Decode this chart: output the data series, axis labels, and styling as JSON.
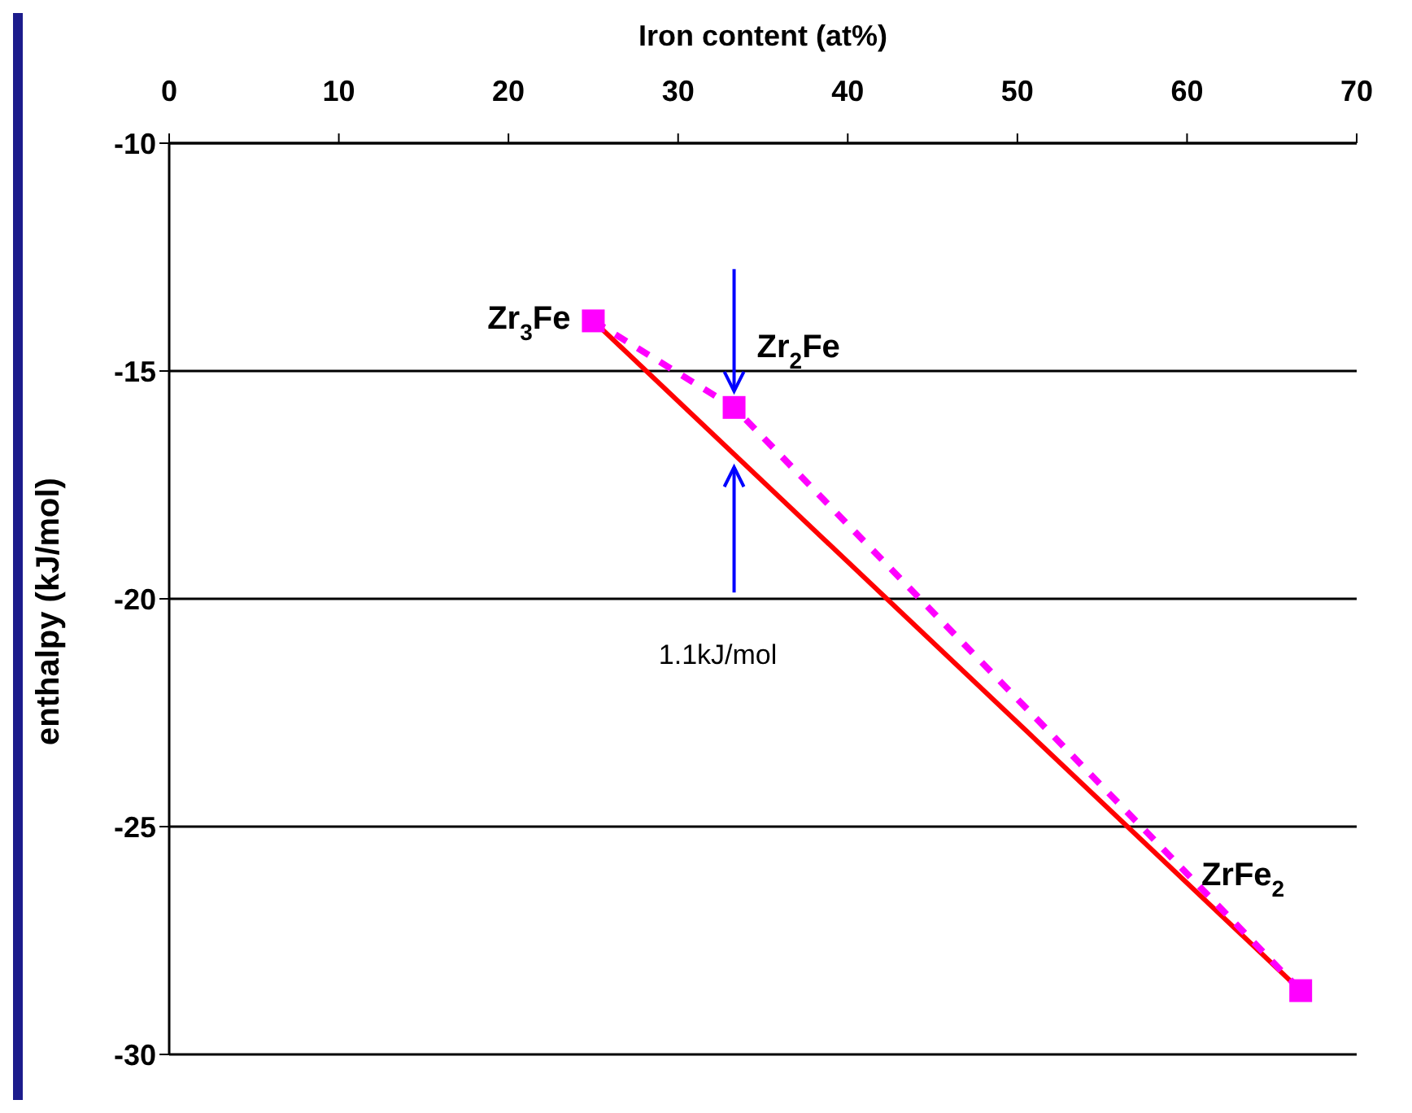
{
  "chart_data": {
    "type": "line",
    "xlabel": "Iron content (at%)",
    "ylabel": "enthalpy (kJ/mol)",
    "xlim": [
      0,
      70
    ],
    "xticks": [
      0,
      10,
      20,
      30,
      40,
      50,
      60,
      70
    ],
    "ylim": [
      -30,
      -10
    ],
    "yticks": [
      -30,
      -25,
      -20,
      -15,
      -10
    ],
    "grid": "y",
    "series": [
      {
        "color": "#ff0000",
        "x": [
          25,
          66.7
        ],
        "values": [
          -13.9,
          -28.6
        ],
        "line_style": "solid",
        "marker": "none"
      },
      {
        "color": "#ff00ff",
        "x": [
          25,
          33.3,
          66.7
        ],
        "values": [
          -13.9,
          -15.8,
          -28.6
        ],
        "line_style": "dashed",
        "marker": "square"
      }
    ],
    "annotations": [
      {
        "text": "Zr$_{3}$Fe",
        "x": 25,
        "y": -13.9
      },
      {
        "text": "Zr$_{2}$Fe",
        "x": 33.3,
        "y": -15.8
      },
      {
        "text": "ZrFe$_{2}$",
        "x": 66.7,
        "y": -28.6
      },
      "1.1kJ/mol"
    ]
  }
}
